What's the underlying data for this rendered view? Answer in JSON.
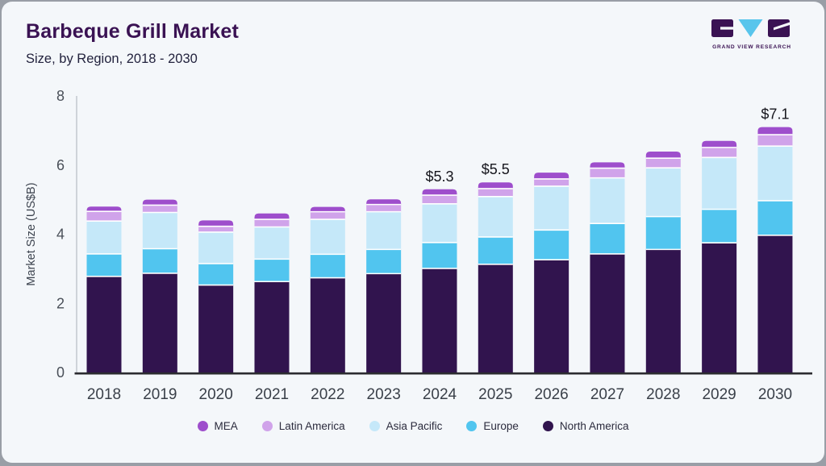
{
  "header": {
    "title": "Barbeque Grill Market",
    "subtitle": "Size, by Region, 2018 - 2030"
  },
  "logo": {
    "text": "GRAND VIEW RESEARCH",
    "dark_color": "#3A1253",
    "accent_color": "#58C5EC"
  },
  "legend": {
    "items": [
      {
        "label": "MEA",
        "color": "#9E4ECC"
      },
      {
        "label": "Latin America",
        "color": "#D0A3EA"
      },
      {
        "label": "Asia Pacific",
        "color": "#C5E8F9"
      },
      {
        "label": "Europe",
        "color": "#51C5EF"
      },
      {
        "label": "North America",
        "color": "#31144E"
      }
    ]
  },
  "chart_data": {
    "type": "bar",
    "stacked": true,
    "title": "Barbeque Grill Market",
    "subtitle": "Size, by Region, 2018 - 2030",
    "xlabel": "",
    "ylabel": "Market Size (US$B)",
    "ylim": [
      0,
      8
    ],
    "yticks": [
      "0",
      "2",
      "4",
      "6",
      "8"
    ],
    "grid": false,
    "legend_position": "bottom",
    "categories": [
      "2018",
      "2019",
      "2020",
      "2021",
      "2022",
      "2023",
      "2024",
      "2025",
      "2026",
      "2027",
      "2028",
      "2029",
      "2030"
    ],
    "series": [
      {
        "name": "North America",
        "color": "#31144E",
        "values": [
          2.78,
          2.87,
          2.53,
          2.63,
          2.74,
          2.86,
          3.01,
          3.13,
          3.26,
          3.43,
          3.56,
          3.75,
          3.97
        ]
      },
      {
        "name": "Europe",
        "color": "#51C5EF",
        "values": [
          0.65,
          0.71,
          0.62,
          0.65,
          0.68,
          0.7,
          0.75,
          0.79,
          0.86,
          0.88,
          0.95,
          0.97,
          1.0
        ]
      },
      {
        "name": "Asia Pacific",
        "color": "#C5E8F9",
        "values": [
          0.95,
          1.05,
          0.91,
          0.93,
          1.01,
          1.09,
          1.12,
          1.17,
          1.27,
          1.32,
          1.41,
          1.5,
          1.58
        ]
      },
      {
        "name": "Latin America",
        "color": "#D0A3EA",
        "values": [
          0.28,
          0.21,
          0.17,
          0.22,
          0.22,
          0.21,
          0.25,
          0.23,
          0.21,
          0.28,
          0.28,
          0.29,
          0.33
        ]
      },
      {
        "name": "MEA",
        "color": "#9E4ECC",
        "values": [
          0.14,
          0.16,
          0.17,
          0.17,
          0.14,
          0.15,
          0.17,
          0.18,
          0.18,
          0.17,
          0.19,
          0.19,
          0.22
        ]
      }
    ],
    "totals": [
      4.8,
      5.0,
      4.4,
      4.6,
      4.8,
      5.0,
      5.3,
      5.5,
      5.8,
      6.1,
      6.4,
      6.7,
      7.1
    ],
    "annotations": [
      {
        "category": "2024",
        "label": "$5.3"
      },
      {
        "category": "2025",
        "label": "$5.5"
      },
      {
        "category": "2030",
        "label": "$7.1"
      }
    ]
  }
}
